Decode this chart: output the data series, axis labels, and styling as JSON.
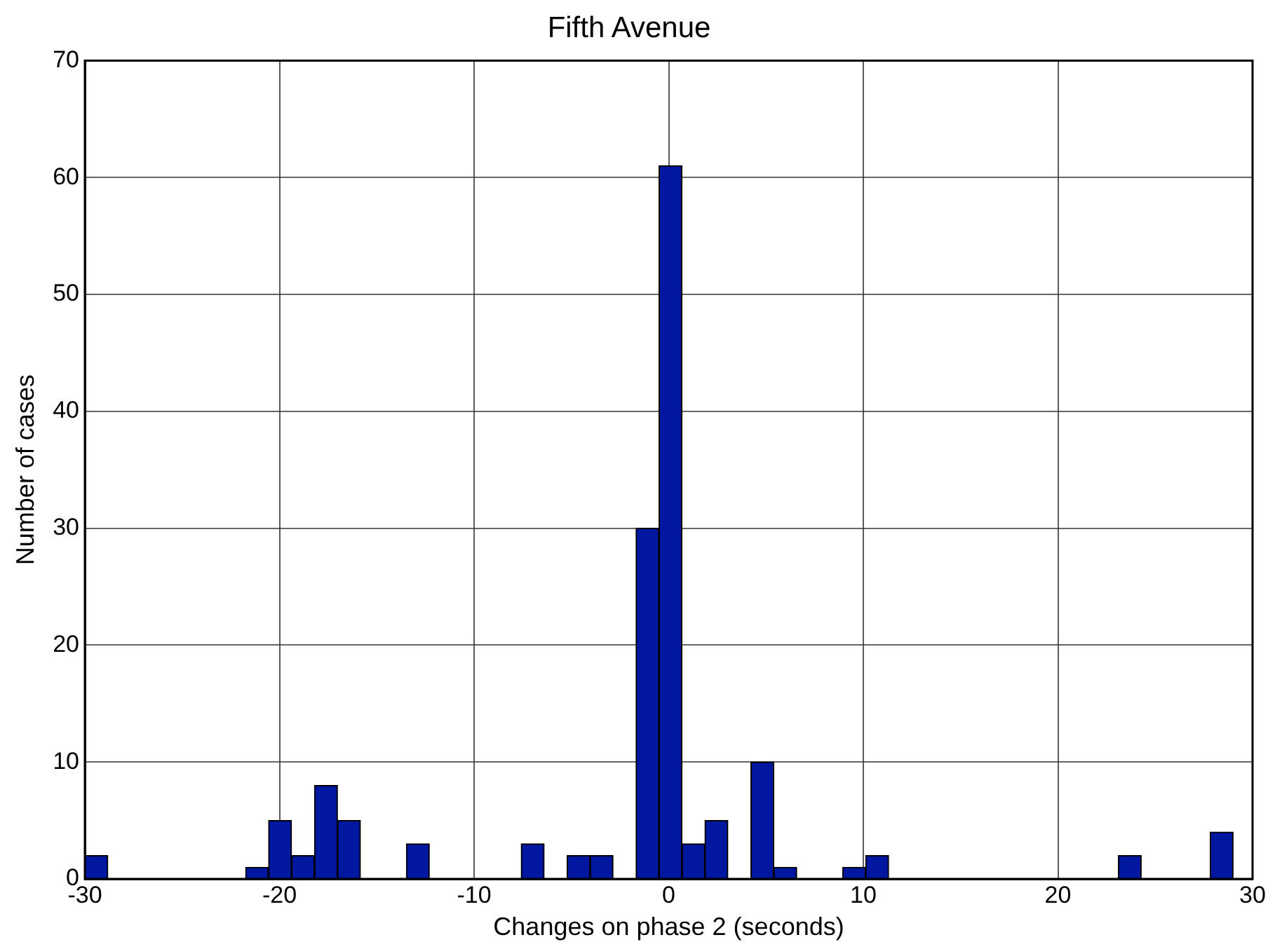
{
  "chart_data": {
    "type": "histogram",
    "title": "Fifth Avenue",
    "xlabel": "Changes on phase 2 (seconds)",
    "ylabel": "Number of cases",
    "bins": [
      -30,
      -28.82,
      -27.64,
      -26.46,
      -25.28,
      -24.1,
      -22.92,
      -21.74,
      -20.56,
      -19.38,
      -18.2,
      -17.02,
      -15.84,
      -14.66,
      -13.48,
      -12.3,
      -11.12,
      -9.94,
      -8.76,
      -7.58,
      -6.4,
      -5.22,
      -4.04,
      -2.86,
      -1.68,
      -0.5,
      0.68,
      1.86,
      3.04,
      4.22,
      5.4,
      6.58,
      7.76,
      8.94,
      10.12,
      11.3,
      12.48,
      13.66,
      14.84,
      16.02,
      17.2,
      18.38,
      19.56,
      20.74,
      21.92,
      23.1,
      24.28,
      25.46,
      26.64,
      27.82,
      29
    ],
    "values": [
      2,
      0,
      0,
      0,
      0,
      0,
      0,
      1,
      5,
      2,
      8,
      5,
      0,
      0,
      3,
      0,
      0,
      0,
      0,
      3,
      0,
      2,
      2,
      0,
      30,
      61,
      3,
      5,
      0,
      10,
      1,
      0,
      0,
      1,
      2,
      0,
      0,
      0,
      0,
      0,
      0,
      0,
      0,
      0,
      0,
      2,
      0,
      0,
      0,
      4
    ],
    "color": "#0018a0",
    "xlim": [
      -30,
      30
    ],
    "xticks": [
      -30,
      -20,
      -10,
      0,
      10,
      20,
      30
    ],
    "ylim": [
      0,
      70
    ],
    "yticks": [
      0,
      10,
      20,
      30,
      40,
      50,
      60,
      70
    ],
    "grid": true,
    "legend": false
  }
}
